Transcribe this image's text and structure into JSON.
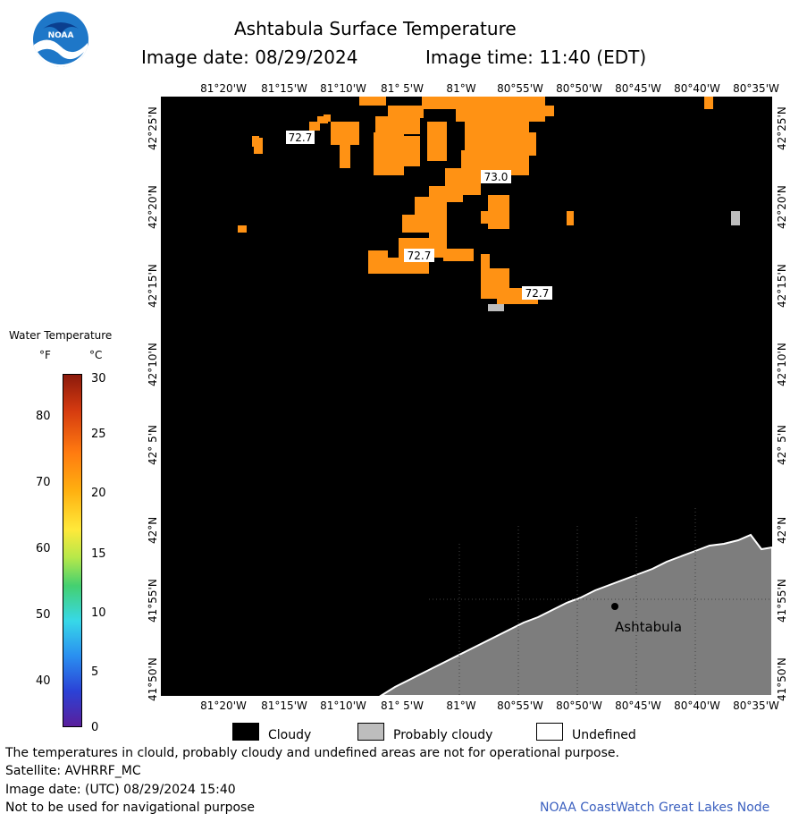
{
  "title": "Ashtabula Surface Temperature",
  "image_date_label": "Image date: 08/29/2024",
  "image_time_label": "Image time: 11:40 (EDT)",
  "logo_text": "NOAA",
  "longitude_labels": [
    "81°20'W",
    "81°15'W",
    "81°10'W",
    "81° 5'W",
    "81°W",
    "80°55'W",
    "80°50'W",
    "80°45'W",
    "80°40'W",
    "80°35'W"
  ],
  "latitude_labels": [
    "42°25'N",
    "42°20'N",
    "42°15'N",
    "42°10'N",
    "42° 5'N",
    "42°N",
    "41°55'N",
    "41°50'N"
  ],
  "temperature_labels": [
    "72.7",
    "73.0",
    "72.7",
    "72.7"
  ],
  "place_label": "Ashtabula",
  "colorbar": {
    "title": "Water Temperature",
    "unit_f": "°F",
    "unit_c": "°C",
    "f_ticks": [
      "80",
      "70",
      "60",
      "50",
      "40"
    ],
    "c_ticks": [
      "30",
      "25",
      "20",
      "15",
      "10",
      "5",
      "0"
    ]
  },
  "legend": {
    "cloudy": "Cloudy",
    "probably_cloudy": "Probably cloudy",
    "undefined": "Undefined"
  },
  "colors": {
    "cloud": "#000000",
    "warm_water": "#ff9214",
    "probably_cloudy": "#bdbdbd",
    "land": "#7d7d7d",
    "undefined": "#ffffff",
    "credit_link": "#3a5fbf"
  },
  "footer": {
    "disclaimer": "The temperatures in clould, probably cloudy and undefined areas are not for operational purpose.",
    "satellite": "Satellite: AVHRRF_MC",
    "utc_date": "Image date: (UTC) 08/29/2024  15:40",
    "navigation_warning": "Not to be used for navigational purpose",
    "credit": "NOAA CoastWatch Great Lakes Node"
  }
}
